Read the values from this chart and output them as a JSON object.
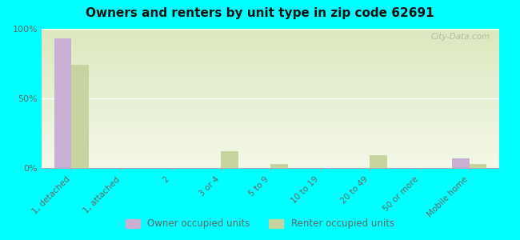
{
  "title": "Owners and renters by unit type in zip code 62691",
  "categories": [
    "1, detached",
    "1, attached",
    "2",
    "3 or 4",
    "5 to 9",
    "10 to 19",
    "20 to 49",
    "50 or more",
    "Mobile home"
  ],
  "owner_values": [
    93,
    0,
    0,
    0,
    0,
    0,
    0,
    0,
    7
  ],
  "renter_values": [
    74,
    0,
    0,
    12,
    3,
    0,
    9,
    0,
    3
  ],
  "owner_color": "#c9afd4",
  "renter_color": "#c8d4a0",
  "background_color": "#00ffff",
  "plot_bg_top": "#dce8c0",
  "plot_bg_bottom": "#f4f8e8",
  "title_color": "#111111",
  "axis_label_color": "#666666",
  "watermark": "City-Data.com",
  "legend_owner": "Owner occupied units",
  "legend_renter": "Renter occupied units",
  "ylim": [
    0,
    100
  ],
  "bar_width": 0.35
}
